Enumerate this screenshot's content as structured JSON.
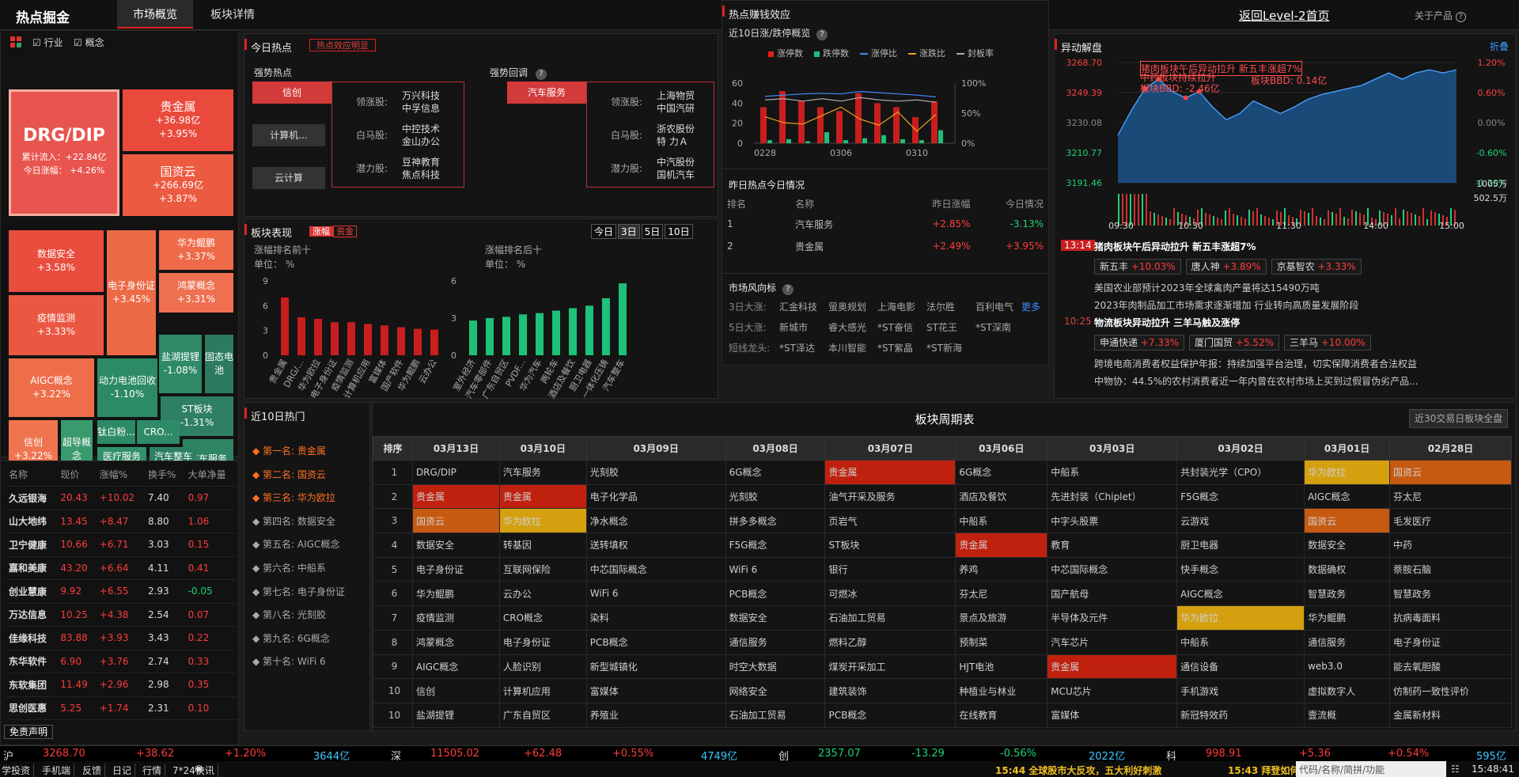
{
  "topbar": {
    "logo": "热点掘金",
    "tabs": [
      "市场概览",
      "板块详情"
    ],
    "level2": "返回Level-2首页",
    "about": "关于产品"
  },
  "filter": {
    "industry": "行业",
    "concept": "概念"
  },
  "treemap": [
    {
      "name": "DRG/DIP",
      "l1": "累计流入：+22.84亿",
      "l2": "今日涨幅： +4.26%",
      "bg": "#e8554e"
    },
    {
      "name": "贵金属",
      "l1": "+36.98亿",
      "l2": "+3.95%",
      "bg": "#ea4a3c"
    },
    {
      "name": "国资云",
      "l1": "+266.69亿",
      "l2": "+3.87%",
      "bg": "#ec5a40"
    },
    {
      "name": "数据安全",
      "l1": "+3.58%",
      "bg": "#e84d3e"
    },
    {
      "name": "电子身份证",
      "l1": "+3.45%",
      "bg": "#ec6a46"
    },
    {
      "name": "华为鲲鹏",
      "l1": "+3.37%",
      "bg": "#ee6a48"
    },
    {
      "name": "疫情监测",
      "l1": "+3.33%",
      "bg": "#ea5842"
    },
    {
      "name": "鸿蒙概念",
      "l1": "+3.31%",
      "bg": "#ee7050"
    },
    {
      "name": "盐湖提锂",
      "l1": "-1.08%",
      "bg": "#2f8a68"
    },
    {
      "name": "固态电池",
      "bg": "#2c7a60"
    },
    {
      "name": "AIGC概念",
      "l1": "+3.22%",
      "bg": "#ee6e4a"
    },
    {
      "name": "动力电池回收",
      "l1": "-1.10%",
      "bg": "#2d8a66"
    },
    {
      "name": "ST板块",
      "l1": "-1.31%",
      "bg": "#2f7f64"
    },
    {
      "name": "信创",
      "l1": "+3.22%",
      "bg": "#ef7550"
    },
    {
      "name": "超导概念",
      "bg": "#3a9a6e"
    },
    {
      "name": "钛白粉...",
      "bg": "#2d8a66"
    },
    {
      "name": "CRO...",
      "bg": "#2f8a68"
    },
    {
      "name": "汽车服务",
      "bg": "#2f8464"
    },
    {
      "name": "医疗服务",
      "bg": "#33906a"
    },
    {
      "name": "汽车整车",
      "bg": "#2e8062"
    }
  ],
  "stocks": {
    "headers": [
      "名称",
      "现价",
      "涨幅%",
      "换手%",
      "大单净量"
    ],
    "rows": [
      [
        "久远银海",
        "20.43",
        "+10.02",
        "7.40",
        "0.97"
      ],
      [
        "山大地纬",
        "13.45",
        "+8.47",
        "8.80",
        "1.06"
      ],
      [
        "卫宁健康",
        "10.66",
        "+6.71",
        "3.03",
        "0.15"
      ],
      [
        "嘉和美康",
        "43.20",
        "+6.64",
        "4.11",
        "0.41"
      ],
      [
        "创业慧康",
        "9.92",
        "+6.55",
        "2.93",
        "-0.05"
      ],
      [
        "万达信息",
        "10.25",
        "+4.38",
        "2.54",
        "0.07"
      ],
      [
        "佳缘科技",
        "83.88",
        "+3.93",
        "3.43",
        "0.22"
      ],
      [
        "东华软件",
        "6.90",
        "+3.76",
        "2.74",
        "0.33"
      ],
      [
        "东软集团",
        "11.49",
        "+2.96",
        "2.98",
        "0.35"
      ],
      [
        "思创医惠",
        "5.25",
        "+1.74",
        "2.31",
        "0.10"
      ]
    ],
    "disclaimer": "免责声明"
  },
  "today_hot": {
    "title": "今日热点",
    "btn": "热点效应明显",
    "strong_title": "强势热点",
    "rebound_title": "强势回调",
    "strong_tags": [
      "信创",
      "计算机...",
      "云计算"
    ],
    "strong_detail": [
      [
        "领涨股:",
        "万兴科技",
        "中孚信息"
      ],
      [
        "白马股:",
        "中控技术",
        "金山办公"
      ],
      [
        "潜力股:",
        "豆神教育",
        "焦点科技"
      ]
    ],
    "rebound_tag": "汽车服务",
    "rebound_detail": [
      [
        "领涨股:",
        "上海物贸",
        "中国汽研"
      ],
      [
        "白马股:",
        "浙农股份",
        "特 力Ａ"
      ],
      [
        "潜力股:",
        "中汽股份",
        "国机汽车"
      ]
    ]
  },
  "money_effect": {
    "title": "热点赚钱效应",
    "sub": "近10日涨/跌停概览",
    "legend": [
      "涨停数",
      "跌停数",
      "涨停比",
      "涨跌比",
      "封板率"
    ],
    "yleft": [
      "60",
      "40",
      "20",
      "0"
    ],
    "yright": [
      "100%",
      "50%",
      "0%"
    ],
    "xlabels": [
      "0228",
      "0306",
      "0310"
    ]
  },
  "chart_data": [
    {
      "type": "bar",
      "title": "近10日涨/跌停概览",
      "series": [
        {
          "name": "涨停数",
          "values": [
            36,
            52,
            42,
            36,
            32,
            50,
            40,
            36,
            26,
            42
          ]
        },
        {
          "name": "跌停数",
          "values": [
            3,
            4,
            2,
            11,
            3,
            5,
            8,
            4,
            3,
            13
          ]
        },
        {
          "name": "涨停比",
          "values": [
            78,
            80,
            82,
            83,
            82,
            86,
            84,
            82,
            80,
            77
          ]
        },
        {
          "name": "涨跌比",
          "values": [
            44,
            34,
            32,
            46,
            60,
            40,
            30,
            52,
            20,
            48
          ]
        },
        {
          "name": "封板率",
          "values": [
            72,
            74,
            70,
            74,
            70,
            76,
            72,
            70,
            72,
            68
          ]
        }
      ],
      "ylim": [
        0,
        60
      ]
    },
    {
      "type": "bar",
      "title": "涨幅排名前十",
      "unit": "单位： %",
      "categories": [
        "贵金属",
        "DRG/...",
        "华为欧拉",
        "电子身份证",
        "疫情监测",
        "计算机应用",
        "富媒体",
        "国产软件",
        "华为鲲鹏",
        "云办公"
      ],
      "values": [
        7.0,
        4.6,
        4.4,
        4.0,
        4.0,
        3.8,
        3.6,
        3.4,
        3.2,
        3.1
      ],
      "ylim": [
        0,
        9
      ]
    },
    {
      "type": "bar",
      "title": "涨幅排名后十",
      "unit": "单位： %",
      "categories": [
        "室外经济",
        "汽车零部件",
        "广东自贸区",
        "PVDF...",
        "华为汽车",
        "两轮车",
        "酒店及餐饮",
        "厨卫电器",
        "一体化压铸",
        "汽车整车"
      ],
      "values": [
        2.8,
        3.0,
        3.1,
        3.3,
        3.4,
        3.6,
        3.8,
        4.0,
        4.6,
        5.8
      ],
      "ylim": [
        0,
        6
      ]
    },
    {
      "type": "line",
      "title": "异动解盘",
      "yticks": [
        "3268.70",
        "3249.39",
        "3230.08",
        "3210.77",
        "3191.46"
      ],
      "yright": [
        "1.20%",
        "0.60%",
        "0.00%",
        "-0.60%",
        "-1.20%"
      ],
      "vol": [
        "1005万",
        "502.5万"
      ],
      "xlabels": [
        "09:30",
        "10:30",
        "11:30",
        "14:00",
        "15:00"
      ],
      "values": [
        3222,
        3238,
        3252,
        3258,
        3250,
        3246,
        3250,
        3240,
        3232,
        3236,
        3244,
        3240,
        3236,
        3240,
        3245,
        3248,
        3250,
        3252,
        3254,
        3258,
        3262,
        3258,
        3262,
        3264,
        3262,
        3264
      ]
    }
  ],
  "yesterday": {
    "title": "昨日热点今日情况",
    "headers": [
      "排名",
      "名称",
      "昨日涨幅",
      "今日情况"
    ],
    "rows": [
      [
        "1",
        "汽车服务",
        "+2.85%",
        "-3.13%"
      ],
      [
        "2",
        "贵金属",
        "+2.49%",
        "+3.95%"
      ]
    ]
  },
  "wind": {
    "title": "市场风向标",
    "more": "更多",
    "rows": [
      {
        "label": "3日大涨:",
        "items": [
          "汇金科技",
          "萤奥规划",
          "上海电影",
          "法尔胜",
          "百利电气"
        ]
      },
      {
        "label": "5日大涨:",
        "items": [
          "新城市",
          "睿大感光",
          "*ST奋信",
          "ST花王",
          "*ST深南"
        ]
      },
      {
        "label": "短线龙头:",
        "items": [
          "*ST泽达",
          "本川智能",
          "*ST紫晶",
          "*ST新海"
        ]
      }
    ]
  },
  "block_perf": {
    "title": "板块表现",
    "tab1": "涨幅",
    "tab2": "资金",
    "periods": [
      "今日",
      "3日",
      "5日",
      "10日"
    ],
    "top_title": "涨幅排名前十",
    "bottom_title": "涨幅排名后十",
    "unit": "单位： %",
    "top_y": [
      "9",
      "6",
      "3",
      "0"
    ],
    "bottom_y": [
      "6",
      "3",
      "0"
    ]
  },
  "yidong": {
    "title": "异动解盘",
    "fold": "折叠",
    "annot": [
      "猪肉板块午后异动拉升 新五丰涨超7%",
      "中药板块持续拉升",
      "板块BBD: 0.14亿",
      "板块BBD: -2.46亿"
    ],
    "news": [
      {
        "time": "13:14",
        "title": "猪肉板块午后异动拉升 新五丰涨超7%",
        "chips": [
          [
            "新五丰",
            "+10.03%"
          ],
          [
            "唐人神",
            "+3.89%"
          ],
          [
            "京基智农",
            "+3.33%"
          ]
        ],
        "lines": [
          "美国农业部预计2023年全球禽肉产量将达15490万吨",
          "2023年肉制品加工市场需求逐渐增加 行业转向高质量发展阶段"
        ]
      },
      {
        "time": "10:25",
        "title": "物流板块异动拉升 三羊马触及涨停",
        "chips": [
          [
            "申通快递",
            "+7.33%"
          ],
          [
            "厦门国贸",
            "+5.52%"
          ],
          [
            "三羊马",
            "+10.00%"
          ]
        ],
        "lines": [
          "跨境电商消费者权益保护年报：持续加强平台治理，切实保障消费者合法权益",
          "中物协：44.5%的农村消费者近一年内曾在农村市场上买到过假冒伪劣产品..."
        ]
      }
    ]
  },
  "hot10": {
    "title": "近10日热门",
    "ranks": [
      [
        "第一名:",
        "贵金属"
      ],
      [
        "第二名:",
        "国资云"
      ],
      [
        "第三名:",
        "华为欧拉"
      ],
      [
        "第四名:",
        "数据安全"
      ],
      [
        "第五名:",
        "AIGC概念"
      ],
      [
        "第六名:",
        "中船系"
      ],
      [
        "第七名:",
        "电子身份证"
      ],
      [
        "第八名:",
        "光刻胶"
      ],
      [
        "第九名:",
        "6G概念"
      ],
      [
        "第十名:",
        "WiFi 6"
      ]
    ]
  },
  "cycle": {
    "title": "板块周期表",
    "btn": "近30交易日板块全盘",
    "headers": [
      "排序",
      "03月13日",
      "03月10日",
      "03月09日",
      "03月08日",
      "03月07日",
      "03月06日",
      "03月03日",
      "03月02日",
      "03月01日",
      "02月28日"
    ],
    "rows": [
      [
        "1",
        "DRG/DIP",
        "汽车服务",
        "光刻胶",
        "6G概念",
        "贵金属",
        "6G概念",
        "中船系",
        "共封装光学（CPO）",
        "华为欧拉",
        "国资云"
      ],
      [
        "2",
        "贵金属",
        "贵金属",
        "电子化学品",
        "光刻胶",
        "油气开采及服务",
        "酒店及餐饮",
        "先进封装（Chiplet）",
        "F5G概念",
        "AIGC概念",
        "芬太尼"
      ],
      [
        "3",
        "国资云",
        "华为欧拉",
        "净水概念",
        "拼多多概念",
        "页岩气",
        "中船系",
        "中字头股票",
        "云游戏",
        "国资云",
        "毛发医疗"
      ],
      [
        "4",
        "数据安全",
        "转基因",
        "送转填权",
        "F5G概念",
        "ST板块",
        "贵金属",
        "教育",
        "厨卫电器",
        "数据安全",
        "中药"
      ],
      [
        "5",
        "电子身份证",
        "互联网保险",
        "中芯国际概念",
        "WiFi 6",
        "银行",
        "养鸡",
        "中芯国际概念",
        "快手概念",
        "数据确权",
        "萘胺石脑"
      ],
      [
        "6",
        "华为鲲鹏",
        "云办公",
        "WiFi 6",
        "PCB概念",
        "可燃冰",
        "芬太尼",
        "国产航母",
        "AIGC概念",
        "智慧政务",
        "智慧政务"
      ],
      [
        "7",
        "疫情监测",
        "CRO概念",
        "染料",
        "数据安全",
        "石油加工贸易",
        "景点及旅游",
        "半导体及元件",
        "华为欧拉",
        "华为鲲鹏",
        "抗病毒面料"
      ],
      [
        "8",
        "鸿蒙概念",
        "电子身份证",
        "PCB概念",
        "通信服务",
        "燃料乙醇",
        "预制菜",
        "汽车芯片",
        "中船系",
        "通信服务",
        "电子身份证"
      ],
      [
        "9",
        "AIGC概念",
        "人脸识别",
        "新型城镇化",
        "时空大数据",
        "煤炭开采加工",
        "HJT电池",
        "贵金属",
        "通信设备",
        "web3.0",
        "能去氧胆酸"
      ],
      [
        "10",
        "信创",
        "计算机应用",
        "富媒体",
        "网络安全",
        "建筑装饰",
        "种植业与林业",
        "MCU芯片",
        "手机游戏",
        "虚拟数字人",
        "仿制药一致性评价"
      ],
      [
        "10",
        "盐湖提锂",
        "广东自贸区",
        "养殖业",
        "石油加工贸易",
        "PCB概念",
        "在线教育",
        "富媒体",
        "新冠特效药",
        "壹流概",
        "金属新材料"
      ]
    ],
    "highlights": {
      "0-5": "hl-red",
      "0-10": "hl-orange",
      "0-9": "hl-gold",
      "1-1": "hl-red",
      "1-2": "hl-red",
      "2-1": "hl-orange",
      "2-2": "hl-gold",
      "2-9": "hl-orange",
      "3-6": "hl-red",
      "6-8": "hl-gold",
      "8-7": "hl-red"
    }
  },
  "ticker": [
    {
      "name": "沪",
      "price": "3268.70",
      "chg": "+38.62",
      "pct": "+1.20%",
      "vol": "3644亿"
    },
    {
      "name": "深",
      "price": "11505.02",
      "chg": "+62.48",
      "pct": "+0.55%",
      "vol": "4749亿"
    },
    {
      "name": "创",
      "price": "2357.07",
      "chg": "-13.29",
      "pct": "-0.56%",
      "vol": "2022亿"
    },
    {
      "name": "科",
      "price": "998.91",
      "chg": "+5.36",
      "pct": "+0.54%",
      "vol": "595亿"
    }
  ],
  "status": {
    "items": [
      "学投资",
      "手机端",
      "反馈",
      "日记",
      "行情",
      "7*24快讯"
    ],
    "news1": "15:44 全球股市大反攻，五大利好刺激",
    "news2": "15:43 拜登如何",
    "search": "代码/名称/简拼/功能",
    "clock": "15:48:41"
  },
  "colors": {
    "up": "#ff3b3b",
    "down": "#1ed27a",
    "accent": "#e02020"
  }
}
